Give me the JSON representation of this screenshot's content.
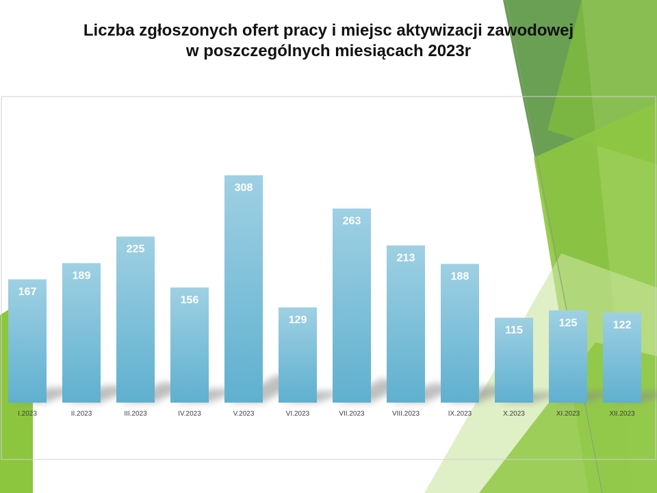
{
  "colors": {
    "bar_top": "#9fd0e3",
    "bar_bottom": "#5fb0cf",
    "accent_green": "#8cc63f",
    "dark_green": "#4a8a2e"
  },
  "title": {
    "line1": "Liczba zgłoszonych ofert pracy i miejsc aktywizacji zawodowej",
    "line2": "w poszczególnych miesiącach 2023r"
  },
  "chart_data": {
    "type": "bar",
    "title": "Liczba zgłoszonych ofert pracy i miejsc aktywizacji zawodowej w poszczególnych miesiącach 2023r",
    "categories": [
      "I.2023",
      "II.2023",
      "III.2023",
      "IV.2023",
      "V.2023",
      "VI.2023",
      "VII.2023",
      "VIII.2023",
      "IX.2023",
      "X.2023",
      "XI.2023",
      "XII.2023"
    ],
    "values": [
      167,
      189,
      225,
      156,
      308,
      129,
      263,
      213,
      188,
      115,
      125,
      122
    ],
    "ylim": [
      0,
      360
    ],
    "grid": false,
    "data_labels": true
  }
}
